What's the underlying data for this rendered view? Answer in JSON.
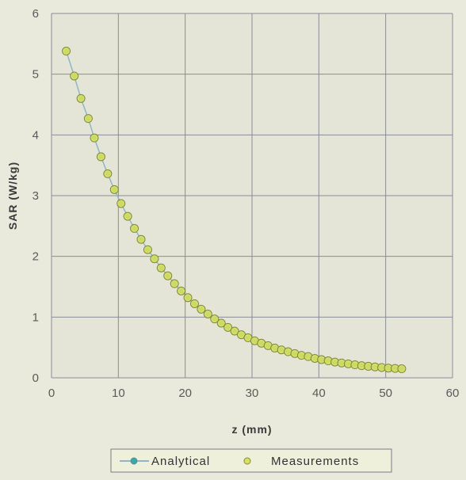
{
  "chart_data": {
    "type": "scatter",
    "xlabel": "z (mm)",
    "ylabel": "SAR (W/kg)",
    "xlim": [
      0,
      60
    ],
    "ylim": [
      0,
      6
    ],
    "x_ticks": [
      "0",
      "10",
      "20",
      "30",
      "40",
      "50",
      "60"
    ],
    "y_ticks": [
      "0",
      "1",
      "2",
      "3",
      "4",
      "5",
      "6"
    ],
    "grid": true,
    "legend_position": "bottom",
    "series": [
      {
        "name": "Analytical",
        "style": "line-with-markers",
        "color": "#3aa9a3",
        "x": [
          2.2,
          3.4,
          4.4,
          5.5,
          6.4,
          7.4,
          8.4,
          9.4,
          10.4,
          11.4,
          12.4,
          13.4,
          14.4,
          15.4,
          16.4,
          17.4,
          18.4,
          19.4,
          20.4,
          21.4,
          22.4,
          23.4,
          24.4,
          25.4,
          26.4,
          27.4,
          28.4,
          29.4,
          30.4,
          31.4,
          32.4,
          33.4,
          34.4,
          35.4,
          36.4,
          37.4,
          38.4,
          39.4,
          40.4,
          41.4,
          42.4,
          43.4,
          44.4,
          45.4,
          46.4,
          47.4,
          48.4,
          49.4,
          50.4,
          51.4,
          52.4
        ],
        "y": [
          5.38,
          4.97,
          4.6,
          4.27,
          3.95,
          3.64,
          3.36,
          3.1,
          2.87,
          2.66,
          2.46,
          2.28,
          2.11,
          1.96,
          1.81,
          1.68,
          1.55,
          1.43,
          1.32,
          1.22,
          1.13,
          1.05,
          0.97,
          0.9,
          0.83,
          0.77,
          0.71,
          0.66,
          0.61,
          0.57,
          0.53,
          0.49,
          0.46,
          0.43,
          0.4,
          0.37,
          0.35,
          0.32,
          0.3,
          0.28,
          0.26,
          0.245,
          0.23,
          0.215,
          0.2,
          0.19,
          0.18,
          0.17,
          0.16,
          0.155,
          0.15
        ]
      },
      {
        "name": "Measurements",
        "style": "markers",
        "color": "#c8cf5a",
        "x": [
          2.2,
          3.4,
          4.4,
          5.5,
          6.4,
          7.4,
          8.4,
          9.4,
          10.4,
          11.4,
          12.4,
          13.4,
          14.4,
          15.4,
          16.4,
          17.4,
          18.4,
          19.4,
          20.4,
          21.4,
          22.4,
          23.4,
          24.4,
          25.4,
          26.4,
          27.4,
          28.4,
          29.4,
          30.4,
          31.4,
          32.4,
          33.4,
          34.4,
          35.4,
          36.4,
          37.4,
          38.4,
          39.4,
          40.4,
          41.4,
          42.4,
          43.4,
          44.4,
          45.4,
          46.4,
          47.4,
          48.4,
          49.4,
          50.4,
          51.4,
          52.4
        ],
        "y": [
          5.38,
          4.97,
          4.6,
          4.27,
          3.95,
          3.64,
          3.36,
          3.1,
          2.87,
          2.66,
          2.46,
          2.28,
          2.11,
          1.96,
          1.81,
          1.68,
          1.55,
          1.43,
          1.32,
          1.22,
          1.13,
          1.05,
          0.97,
          0.9,
          0.83,
          0.77,
          0.71,
          0.66,
          0.61,
          0.57,
          0.53,
          0.49,
          0.46,
          0.43,
          0.4,
          0.37,
          0.35,
          0.32,
          0.3,
          0.28,
          0.26,
          0.245,
          0.23,
          0.215,
          0.2,
          0.19,
          0.18,
          0.17,
          0.16,
          0.155,
          0.15
        ]
      }
    ]
  },
  "colors": {
    "background": "#e9eadc",
    "plot_background": "#e4e5d6",
    "grid": "#8a8c98",
    "analytical_line": "#8fb6c8",
    "analytical_marker": "#3aa9a3",
    "measurement_fill": "#d9df5e",
    "measurement_stroke": "#7c8a3c"
  }
}
